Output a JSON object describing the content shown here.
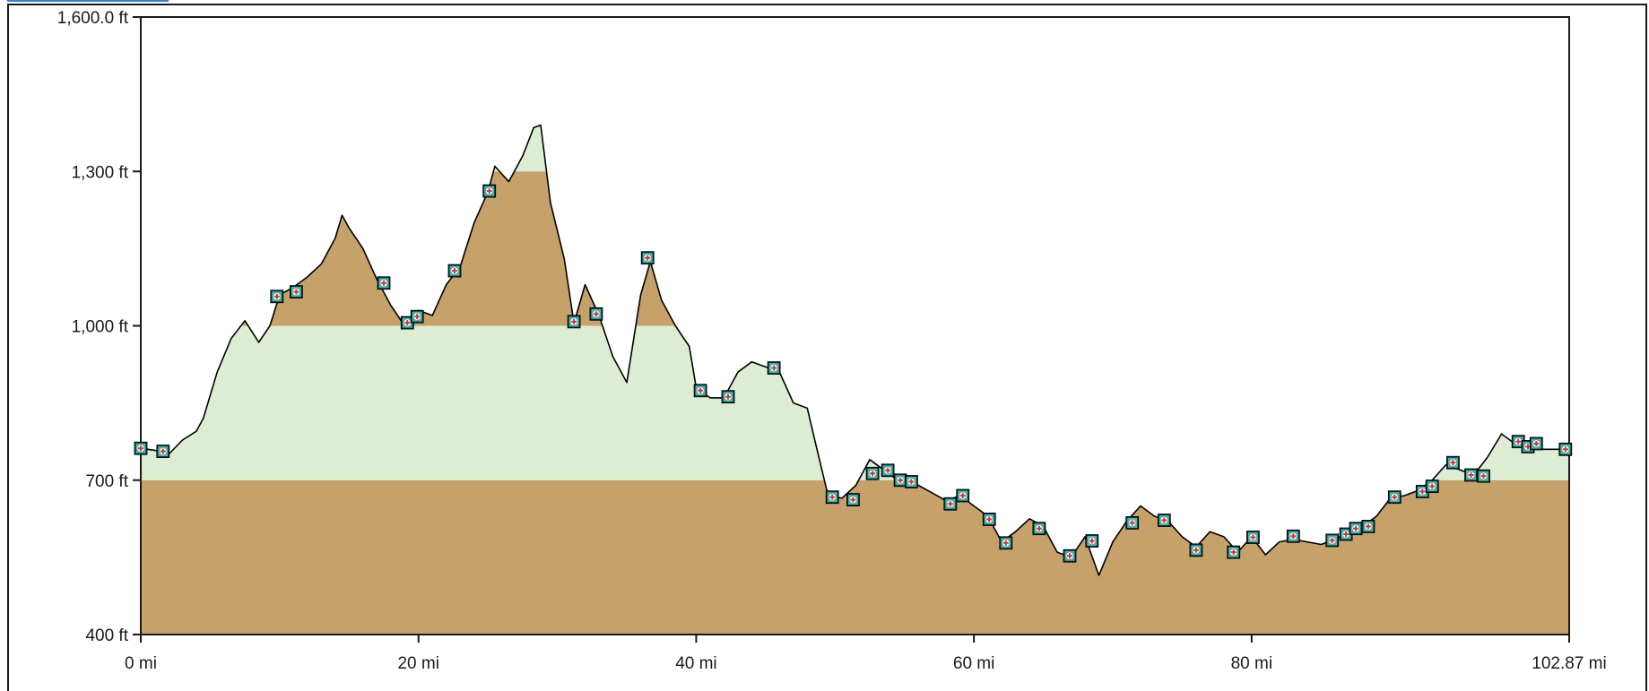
{
  "chart_data": {
    "type": "area",
    "title": "",
    "xlabel": "",
    "ylabel": "",
    "x_unit": "mi",
    "y_unit": "ft",
    "xlim": [
      0,
      102.87
    ],
    "ylim": [
      400,
      1600
    ],
    "x_ticks": [
      {
        "value": 0,
        "label": "0 mi"
      },
      {
        "value": 20,
        "label": "20 mi"
      },
      {
        "value": 40,
        "label": "40 mi"
      },
      {
        "value": 60,
        "label": "60 mi"
      },
      {
        "value": 80,
        "label": "80 mi"
      },
      {
        "value": 102.87,
        "label": "102.87 mi"
      }
    ],
    "y_ticks": [
      {
        "value": 400,
        "label": "400 ft"
      },
      {
        "value": 700,
        "label": "700 ft"
      },
      {
        "value": 1000,
        "label": "1,000 ft"
      },
      {
        "value": 1300,
        "label": "1,300 ft"
      },
      {
        "value": 1600,
        "label": "1,600.0 ft"
      }
    ],
    "bands": [
      {
        "from": 400,
        "to": 700,
        "color": "#c6a16a"
      },
      {
        "from": 700,
        "to": 1000,
        "color": "#dcedd3"
      },
      {
        "from": 1000,
        "to": 1300,
        "color": "#c6a16a"
      },
      {
        "from": 1300,
        "to": 1600,
        "color": "#dcedd3"
      }
    ],
    "grid": false,
    "line_color": "#000000",
    "profile": [
      [
        0,
        762
      ],
      [
        1,
        758
      ],
      [
        2,
        750
      ],
      [
        3,
        778
      ],
      [
        4,
        795
      ],
      [
        4.5,
        820
      ],
      [
        5.5,
        910
      ],
      [
        6.5,
        975
      ],
      [
        7.5,
        1010
      ],
      [
        8.5,
        968
      ],
      [
        9.3,
        1000
      ],
      [
        10,
        1060
      ],
      [
        11,
        1075
      ],
      [
        12,
        1095
      ],
      [
        13,
        1120
      ],
      [
        14,
        1170
      ],
      [
        14.5,
        1215
      ],
      [
        15,
        1190
      ],
      [
        16,
        1150
      ],
      [
        17,
        1090
      ],
      [
        18,
        1040
      ],
      [
        19,
        1000
      ],
      [
        20,
        1030
      ],
      [
        21,
        1020
      ],
      [
        22,
        1080
      ],
      [
        23,
        1115
      ],
      [
        24,
        1200
      ],
      [
        25,
        1260
      ],
      [
        25.5,
        1310
      ],
      [
        26.5,
        1280
      ],
      [
        27.5,
        1330
      ],
      [
        28.3,
        1385
      ],
      [
        28.8,
        1390
      ],
      [
        29.5,
        1240
      ],
      [
        30.5,
        1130
      ],
      [
        31.2,
        1005
      ],
      [
        32,
        1080
      ],
      [
        33,
        1020
      ],
      [
        34,
        940
      ],
      [
        35,
        890
      ],
      [
        36,
        1060
      ],
      [
        36.7,
        1125
      ],
      [
        37.5,
        1050
      ],
      [
        38.5,
        1000
      ],
      [
        39.5,
        960
      ],
      [
        40,
        880
      ],
      [
        41,
        860
      ],
      [
        42,
        860
      ],
      [
        43,
        910
      ],
      [
        44,
        930
      ],
      [
        45,
        920
      ],
      [
        46,
        910
      ],
      [
        47,
        850
      ],
      [
        48,
        840
      ],
      [
        48.7,
        760
      ],
      [
        49.5,
        670
      ],
      [
        50.5,
        665
      ],
      [
        51.5,
        690
      ],
      [
        52.5,
        740
      ],
      [
        53.5,
        720
      ],
      [
        54.5,
        700
      ],
      [
        56,
        690
      ],
      [
        57,
        675
      ],
      [
        58,
        660
      ],
      [
        59,
        670
      ],
      [
        60,
        650
      ],
      [
        61,
        630
      ],
      [
        62,
        580
      ],
      [
        63,
        600
      ],
      [
        64,
        625
      ],
      [
        65,
        610
      ],
      [
        66,
        560
      ],
      [
        67,
        550
      ],
      [
        68,
        590
      ],
      [
        69,
        515
      ],
      [
        70,
        580
      ],
      [
        71,
        620
      ],
      [
        72,
        650
      ],
      [
        73,
        630
      ],
      [
        74,
        620
      ],
      [
        75,
        590
      ],
      [
        76,
        570
      ],
      [
        77,
        600
      ],
      [
        78,
        590
      ],
      [
        79,
        560
      ],
      [
        80,
        590
      ],
      [
        81,
        555
      ],
      [
        82,
        580
      ],
      [
        83,
        585
      ],
      [
        84,
        580
      ],
      [
        85,
        575
      ],
      [
        86,
        585
      ],
      [
        87,
        600
      ],
      [
        88,
        610
      ],
      [
        89,
        630
      ],
      [
        90,
        665
      ],
      [
        91,
        670
      ],
      [
        92,
        680
      ],
      [
        93,
        700
      ],
      [
        94,
        730
      ],
      [
        95,
        720
      ],
      [
        96,
        710
      ],
      [
        97,
        745
      ],
      [
        98,
        790
      ],
      [
        99,
        770
      ],
      [
        100,
        775
      ],
      [
        101,
        760
      ],
      [
        102.87,
        760
      ]
    ],
    "waypoints": [
      [
        0,
        762
      ],
      [
        1.6,
        756
      ],
      [
        9.8,
        1057
      ],
      [
        11.2,
        1066
      ],
      [
        17.5,
        1083
      ],
      [
        19.2,
        1006
      ],
      [
        19.9,
        1018
      ],
      [
        22.6,
        1107
      ],
      [
        25.1,
        1262
      ],
      [
        31.2,
        1008
      ],
      [
        32.8,
        1023
      ],
      [
        36.5,
        1132
      ],
      [
        40.3,
        874
      ],
      [
        42.3,
        862
      ],
      [
        45.6,
        918
      ],
      [
        49.8,
        667
      ],
      [
        51.3,
        662
      ],
      [
        52.7,
        713
      ],
      [
        53.8,
        719
      ],
      [
        54.7,
        700
      ],
      [
        55.5,
        697
      ],
      [
        58.3,
        654
      ],
      [
        59.2,
        670
      ],
      [
        61.1,
        624
      ],
      [
        62.3,
        578
      ],
      [
        64.7,
        606
      ],
      [
        66.9,
        553
      ],
      [
        68.5,
        582
      ],
      [
        71.4,
        617
      ],
      [
        73.7,
        622
      ],
      [
        76.0,
        564
      ],
      [
        78.7,
        560
      ],
      [
        80.1,
        589
      ],
      [
        83.0,
        591
      ],
      [
        85.8,
        583
      ],
      [
        86.8,
        595
      ],
      [
        87.5,
        606
      ],
      [
        88.4,
        610
      ],
      [
        90.3,
        667
      ],
      [
        92.3,
        678
      ],
      [
        93.0,
        688
      ],
      [
        94.5,
        734
      ],
      [
        95.8,
        710
      ],
      [
        96.7,
        708
      ],
      [
        99.2,
        775
      ],
      [
        99.9,
        765
      ],
      [
        100.5,
        771
      ],
      [
        102.6,
        760
      ]
    ]
  }
}
